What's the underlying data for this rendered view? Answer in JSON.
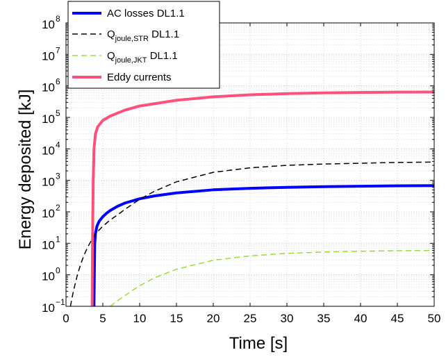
{
  "chart_data": {
    "type": "line",
    "title": "",
    "xlabel": "Time [s]",
    "ylabel": "Energy deposited [kJ]",
    "xlim": [
      0,
      50
    ],
    "ylim": [
      0.1,
      100000000
    ],
    "yscale": "log",
    "grid": true,
    "legend_position": "top-left",
    "x_ticks": [
      "0",
      "5",
      "10",
      "15",
      "20",
      "25",
      "30",
      "35",
      "40",
      "45",
      "50"
    ],
    "y_ticks": [
      {
        "base": "10",
        "exp": "−1"
      },
      {
        "base": "10",
        "exp": "0"
      },
      {
        "base": "10",
        "exp": "1"
      },
      {
        "base": "10",
        "exp": "2"
      },
      {
        "base": "10",
        "exp": "3"
      },
      {
        "base": "10",
        "exp": "4"
      },
      {
        "base": "10",
        "exp": "5"
      },
      {
        "base": "10",
        "exp": "6"
      },
      {
        "base": "10",
        "exp": "7"
      },
      {
        "base": "10",
        "exp": "8"
      }
    ],
    "series": [
      {
        "name": "AC losses DL1.1",
        "label_main": "AC losses DL1.1",
        "label_sub": "",
        "label_tail": "",
        "color": "#0000ff",
        "style": "solid",
        "x": [
          3.8,
          3.9,
          4.0,
          4.2,
          4.5,
          5,
          5.5,
          6,
          7,
          8,
          10,
          12,
          15,
          20,
          25,
          30,
          35,
          40,
          45,
          50
        ],
        "y": [
          0.1,
          10,
          20,
          35,
          50,
          70,
          90,
          110,
          150,
          190,
          260,
          320,
          400,
          500,
          560,
          600,
          630,
          650,
          670,
          680
        ]
      },
      {
        "name": "Q_joule,STR DL1.1",
        "label_main": "Q",
        "label_sub": "joule,STR",
        "label_tail": " DL1.1",
        "color": "#000000",
        "style": "dashed",
        "x": [
          0.6,
          1,
          1.5,
          2,
          2.5,
          3,
          3.5,
          4,
          5,
          6,
          7,
          8,
          10,
          12,
          15,
          20,
          25,
          30,
          35,
          40,
          45,
          50
        ],
        "y": [
          0.1,
          0.3,
          0.9,
          2.2,
          4.5,
          8,
          13,
          20,
          35,
          55,
          80,
          120,
          250,
          450,
          900,
          1800,
          2500,
          3000,
          3300,
          3500,
          3700,
          3800
        ]
      },
      {
        "name": "Q_joule,JKT DL1.1",
        "label_main": "Q",
        "label_sub": "joule,JKT",
        "label_tail": " DL1.1",
        "color": "#99dd33",
        "style": "dashed",
        "x": [
          6,
          7,
          8,
          10,
          12,
          15,
          20,
          25,
          30,
          35,
          40,
          45,
          50
        ],
        "y": [
          0.1,
          0.15,
          0.22,
          0.45,
          0.8,
          1.5,
          2.9,
          4,
          4.8,
          5.3,
          5.6,
          5.8,
          5.9
        ]
      },
      {
        "name": "Eddy currents",
        "label_main": "Eddy currents",
        "label_sub": "",
        "label_tail": "",
        "color": "#ff4f7b",
        "style": "solid",
        "x": [
          3.55,
          3.6,
          3.7,
          3.8,
          4,
          4.3,
          5,
          6,
          8,
          10,
          15,
          20,
          25,
          30,
          35,
          40,
          45,
          50
        ],
        "y": [
          0.1,
          10,
          1000,
          10000,
          30000,
          50000,
          80000,
          110000,
          170000,
          230000,
          350000,
          450000,
          520000,
          570000,
          600000,
          620000,
          635000,
          640000
        ]
      }
    ]
  }
}
